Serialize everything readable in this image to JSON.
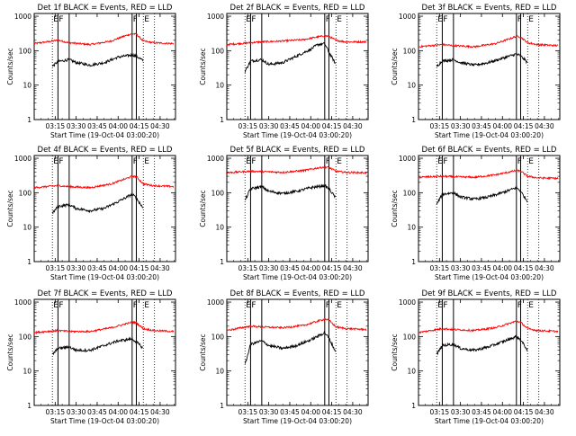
{
  "colors": {
    "events": "#000000",
    "lld": "#ff0000",
    "axes": "#000000",
    "background": "#ffffff"
  },
  "common": {
    "ylabel": "Counts/sec",
    "xlabel": "Start Time (19-Oct-04 03:00:20)",
    "xticks": [
      "03:15",
      "03:30",
      "03:45",
      "04:00",
      "04:15",
      "04:30"
    ],
    "yticks": [
      "1",
      "10",
      "100",
      "1000"
    ],
    "marker_labels": [
      "E",
      "F",
      "F",
      "E"
    ]
  },
  "chart_data": [
    {
      "type": "line",
      "title": "Det 1f BLACK = Events, RED = LLD",
      "xlim": [
        "03:00",
        "04:41"
      ],
      "ylim": [
        1,
        1200
      ],
      "yscale": "log",
      "markers": {
        "solid": [
          "03:17",
          "03:25",
          "04:10",
          "04:13"
        ],
        "dotted": [
          "03:13",
          "04:18",
          "04:26"
        ]
      },
      "series": [
        {
          "color": "red",
          "points": [
            [
              "03:00",
              160
            ],
            [
              "03:17",
              200
            ],
            [
              "03:25",
              170
            ],
            [
              "03:40",
              150
            ],
            [
              "03:55",
              190
            ],
            [
              "04:05",
              270
            ],
            [
              "04:10",
              310
            ],
            [
              "04:13",
              300
            ],
            [
              "04:18",
              190
            ],
            [
              "04:25",
              170
            ],
            [
              "04:40",
              160
            ]
          ]
        },
        {
          "color": "black",
          "start": "03:13",
          "end": "04:18",
          "points": [
            [
              "03:13",
              35
            ],
            [
              "03:17",
              48
            ],
            [
              "03:25",
              55
            ],
            [
              "03:30",
              45
            ],
            [
              "03:40",
              38
            ],
            [
              "03:50",
              45
            ],
            [
              "04:00",
              65
            ],
            [
              "04:10",
              75
            ],
            [
              "04:13",
              70
            ],
            [
              "04:18",
              50
            ]
          ]
        }
      ]
    },
    {
      "type": "line",
      "title": "Det 2f BLACK = Events, RED = LLD",
      "xlim": [
        "03:00",
        "04:41"
      ],
      "ylim": [
        1,
        1200
      ],
      "yscale": "log",
      "markers": {
        "solid": [
          "03:17",
          "03:25",
          "04:10",
          "04:13"
        ],
        "dotted": [
          "03:13",
          "04:18",
          "04:26"
        ]
      },
      "series": [
        {
          "color": "red",
          "points": [
            [
              "03:00",
              150
            ],
            [
              "03:17",
              170
            ],
            [
              "03:25",
              180
            ],
            [
              "03:40",
              190
            ],
            [
              "03:55",
              210
            ],
            [
              "04:05",
              250
            ],
            [
              "04:10",
              270
            ],
            [
              "04:13",
              260
            ],
            [
              "04:18",
              200
            ],
            [
              "04:25",
              180
            ],
            [
              "04:40",
              180
            ]
          ]
        },
        {
          "color": "black",
          "start": "03:13",
          "end": "04:18",
          "points": [
            [
              "03:13",
              25
            ],
            [
              "03:17",
              50
            ],
            [
              "03:25",
              55
            ],
            [
              "03:30",
              40
            ],
            [
              "03:40",
              45
            ],
            [
              "03:50",
              70
            ],
            [
              "04:00",
              110
            ],
            [
              "04:05",
              150
            ],
            [
              "04:10",
              160
            ],
            [
              "04:13",
              90
            ],
            [
              "04:18",
              40
            ]
          ]
        }
      ]
    },
    {
      "type": "line",
      "title": "Det 3f BLACK = Events, RED = LLD",
      "xlim": [
        "03:00",
        "04:41"
      ],
      "ylim": [
        1,
        1200
      ],
      "yscale": "log",
      "markers": {
        "solid": [
          "03:17",
          "03:25",
          "04:10",
          "04:13"
        ],
        "dotted": [
          "03:13",
          "04:18",
          "04:26"
        ]
      },
      "series": [
        {
          "color": "red",
          "points": [
            [
              "03:00",
              130
            ],
            [
              "03:17",
              150
            ],
            [
              "03:25",
              140
            ],
            [
              "03:40",
              130
            ],
            [
              "03:55",
              160
            ],
            [
              "04:05",
              220
            ],
            [
              "04:10",
              260
            ],
            [
              "04:13",
              250
            ],
            [
              "04:18",
              170
            ],
            [
              "04:25",
              150
            ],
            [
              "04:40",
              140
            ]
          ]
        },
        {
          "color": "black",
          "start": "03:13",
          "end": "04:18",
          "points": [
            [
              "03:13",
              35
            ],
            [
              "03:17",
              50
            ],
            [
              "03:25",
              55
            ],
            [
              "03:30",
              45
            ],
            [
              "03:40",
              38
            ],
            [
              "03:50",
              45
            ],
            [
              "04:00",
              60
            ],
            [
              "04:10",
              80
            ],
            [
              "04:13",
              70
            ],
            [
              "04:18",
              45
            ]
          ]
        }
      ]
    },
    {
      "type": "line",
      "title": "Det 4f BLACK = Events, RED = LLD",
      "xlim": [
        "03:00",
        "04:41"
      ],
      "ylim": [
        1,
        1200
      ],
      "yscale": "log",
      "markers": {
        "solid": [
          "03:17",
          "03:25",
          "04:10",
          "04:13"
        ],
        "dotted": [
          "03:13",
          "04:18",
          "04:26"
        ]
      },
      "series": [
        {
          "color": "red",
          "points": [
            [
              "03:00",
              140
            ],
            [
              "03:17",
              160
            ],
            [
              "03:25",
              150
            ],
            [
              "03:40",
              140
            ],
            [
              "03:55",
              180
            ],
            [
              "04:05",
              250
            ],
            [
              "04:10",
              300
            ],
            [
              "04:13",
              290
            ],
            [
              "04:18",
              180
            ],
            [
              "04:25",
              160
            ],
            [
              "04:40",
              150
            ]
          ]
        },
        {
          "color": "black",
          "start": "03:13",
          "end": "04:18",
          "points": [
            [
              "03:13",
              25
            ],
            [
              "03:17",
              40
            ],
            [
              "03:25",
              45
            ],
            [
              "03:30",
              35
            ],
            [
              "03:40",
              30
            ],
            [
              "03:50",
              35
            ],
            [
              "04:00",
              55
            ],
            [
              "04:10",
              90
            ],
            [
              "04:13",
              70
            ],
            [
              "04:18",
              35
            ]
          ]
        }
      ]
    },
    {
      "type": "line",
      "title": "Det 5f BLACK = Events, RED = LLD",
      "xlim": [
        "03:00",
        "04:41"
      ],
      "ylim": [
        1,
        1200
      ],
      "yscale": "log",
      "markers": {
        "solid": [
          "03:17",
          "03:25",
          "04:10",
          "04:13"
        ],
        "dotted": [
          "03:13",
          "04:18",
          "04:26"
        ]
      },
      "series": [
        {
          "color": "red",
          "points": [
            [
              "03:00",
              380
            ],
            [
              "03:17",
              420
            ],
            [
              "03:25",
              410
            ],
            [
              "03:40",
              390
            ],
            [
              "03:55",
              440
            ],
            [
              "04:05",
              520
            ],
            [
              "04:10",
              560
            ],
            [
              "04:13",
              540
            ],
            [
              "04:18",
              420
            ],
            [
              "04:25",
              390
            ],
            [
              "04:40",
              380
            ]
          ]
        },
        {
          "color": "black",
          "start": "03:13",
          "end": "04:18",
          "points": [
            [
              "03:13",
              60
            ],
            [
              "03:17",
              130
            ],
            [
              "03:25",
              150
            ],
            [
              "03:30",
              110
            ],
            [
              "03:40",
              95
            ],
            [
              "03:50",
              110
            ],
            [
              "04:00",
              140
            ],
            [
              "04:10",
              160
            ],
            [
              "04:13",
              130
            ],
            [
              "04:18",
              70
            ]
          ]
        }
      ]
    },
    {
      "type": "line",
      "title": "Det 6f BLACK = Events, RED = LLD",
      "xlim": [
        "03:00",
        "04:41"
      ],
      "ylim": [
        1,
        1200
      ],
      "yscale": "log",
      "markers": {
        "solid": [
          "03:17",
          "03:25",
          "04:10",
          "04:13"
        ],
        "dotted": [
          "03:13",
          "04:18",
          "04:26"
        ]
      },
      "series": [
        {
          "color": "red",
          "points": [
            [
              "03:00",
              280
            ],
            [
              "03:17",
              300
            ],
            [
              "03:25",
              290
            ],
            [
              "03:40",
              280
            ],
            [
              "03:55",
              330
            ],
            [
              "04:05",
              400
            ],
            [
              "04:10",
              440
            ],
            [
              "04:13",
              420
            ],
            [
              "04:18",
              300
            ],
            [
              "04:25",
              270
            ],
            [
              "04:40",
              260
            ]
          ]
        },
        {
          "color": "black",
          "start": "03:13",
          "end": "04:18",
          "points": [
            [
              "03:13",
              45
            ],
            [
              "03:17",
              90
            ],
            [
              "03:25",
              100
            ],
            [
              "03:30",
              75
            ],
            [
              "03:40",
              65
            ],
            [
              "03:50",
              75
            ],
            [
              "04:00",
              100
            ],
            [
              "04:10",
              140
            ],
            [
              "04:13",
              110
            ],
            [
              "04:18",
              55
            ]
          ]
        }
      ]
    },
    {
      "type": "line",
      "title": "Det 7f BLACK = Events, RED = LLD",
      "xlim": [
        "03:00",
        "04:41"
      ],
      "ylim": [
        1,
        1200
      ],
      "yscale": "log",
      "markers": {
        "solid": [
          "03:17",
          "03:25",
          "04:10",
          "04:13"
        ],
        "dotted": [
          "03:13",
          "04:18",
          "04:26"
        ]
      },
      "series": [
        {
          "color": "red",
          "points": [
            [
              "03:00",
              130
            ],
            [
              "03:17",
              150
            ],
            [
              "03:25",
              140
            ],
            [
              "03:40",
              140
            ],
            [
              "03:55",
              180
            ],
            [
              "04:05",
              230
            ],
            [
              "04:10",
              260
            ],
            [
              "04:13",
              250
            ],
            [
              "04:18",
              170
            ],
            [
              "04:25",
              150
            ],
            [
              "04:40",
              140
            ]
          ]
        },
        {
          "color": "black",
          "start": "03:13",
          "end": "04:18",
          "points": [
            [
              "03:13",
              30
            ],
            [
              "03:17",
              45
            ],
            [
              "03:25",
              50
            ],
            [
              "03:30",
              40
            ],
            [
              "03:40",
              40
            ],
            [
              "03:50",
              55
            ],
            [
              "04:00",
              75
            ],
            [
              "04:10",
              85
            ],
            [
              "04:13",
              70
            ],
            [
              "04:18",
              45
            ]
          ]
        }
      ]
    },
    {
      "type": "line",
      "title": "Det 8f BLACK = Events, RED = LLD",
      "xlim": [
        "03:00",
        "04:41"
      ],
      "ylim": [
        1,
        1200
      ],
      "yscale": "log",
      "markers": {
        "solid": [
          "03:17",
          "03:25",
          "04:10",
          "04:13"
        ],
        "dotted": [
          "03:13",
          "04:18",
          "04:26"
        ]
      },
      "series": [
        {
          "color": "red",
          "points": [
            [
              "03:00",
              150
            ],
            [
              "03:17",
              200
            ],
            [
              "03:25",
              190
            ],
            [
              "03:40",
              180
            ],
            [
              "03:55",
              210
            ],
            [
              "04:05",
              280
            ],
            [
              "04:10",
              320
            ],
            [
              "04:13",
              300
            ],
            [
              "04:18",
              190
            ],
            [
              "04:25",
              170
            ],
            [
              "04:40",
              160
            ]
          ]
        },
        {
          "color": "black",
          "start": "03:13",
          "end": "04:18",
          "points": [
            [
              "03:13",
              15
            ],
            [
              "03:17",
              60
            ],
            [
              "03:25",
              75
            ],
            [
              "03:30",
              55
            ],
            [
              "03:40",
              45
            ],
            [
              "03:50",
              55
            ],
            [
              "04:00",
              80
            ],
            [
              "04:10",
              130
            ],
            [
              "04:13",
              90
            ],
            [
              "04:18",
              35
            ]
          ]
        }
      ]
    },
    {
      "type": "line",
      "title": "Det 9f BLACK = Events, RED = LLD",
      "xlim": [
        "03:00",
        "04:41"
      ],
      "ylim": [
        1,
        1200
      ],
      "yscale": "log",
      "markers": {
        "solid": [
          "03:17",
          "03:25",
          "04:10",
          "04:13"
        ],
        "dotted": [
          "03:13",
          "04:18",
          "04:26"
        ]
      },
      "series": [
        {
          "color": "red",
          "points": [
            [
              "03:00",
              130
            ],
            [
              "03:17",
              170
            ],
            [
              "03:25",
              160
            ],
            [
              "03:40",
              150
            ],
            [
              "03:55",
              180
            ],
            [
              "04:05",
              240
            ],
            [
              "04:10",
              280
            ],
            [
              "04:13",
              260
            ],
            [
              "04:18",
              170
            ],
            [
              "04:25",
              150
            ],
            [
              "04:40",
              140
            ]
          ]
        },
        {
          "color": "black",
          "start": "03:13",
          "end": "04:18",
          "points": [
            [
              "03:13",
              30
            ],
            [
              "03:17",
              55
            ],
            [
              "03:25",
              60
            ],
            [
              "03:30",
              45
            ],
            [
              "03:40",
              40
            ],
            [
              "03:50",
              50
            ],
            [
              "04:00",
              70
            ],
            [
              "04:10",
              100
            ],
            [
              "04:13",
              80
            ],
            [
              "04:18",
              40
            ]
          ]
        }
      ]
    }
  ]
}
